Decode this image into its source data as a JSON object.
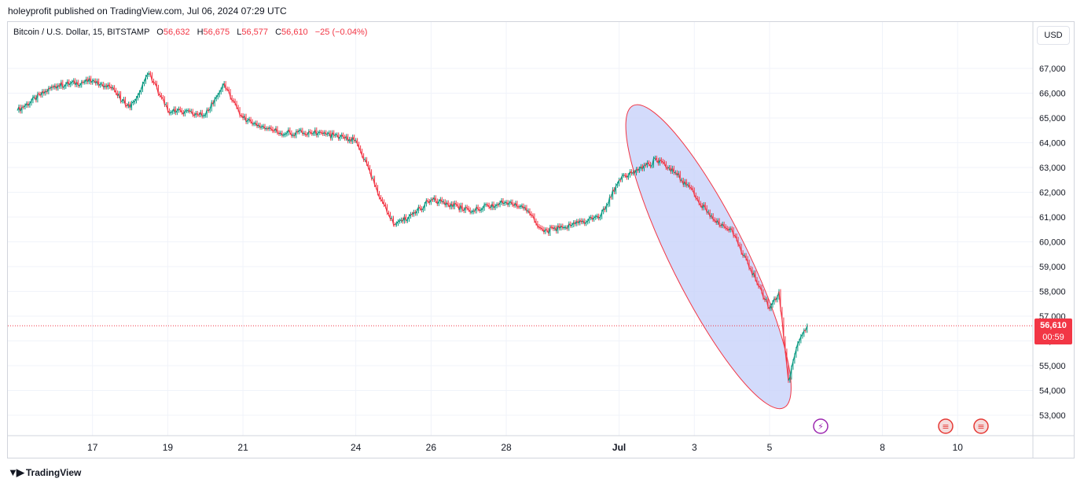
{
  "header": {
    "published": "holeyprofit published on TradingView.com, Jul 06, 2024 07:29 UTC"
  },
  "legend": {
    "symbol": "Bitcoin / U.S. Dollar, 15, BITSTAMP",
    "o_label": "O",
    "o_value": "56,632",
    "h_label": "H",
    "h_value": "56,675",
    "l_label": "L",
    "l_value": "56,577",
    "c_label": "C",
    "c_value": "56,610",
    "change": "−25 (−0.04%)"
  },
  "currency": "USD",
  "last_price": {
    "price": "56,610",
    "countdown": "00:59"
  },
  "footer": {
    "brand": "TradingView"
  },
  "colors": {
    "up": "#089981",
    "down": "#f23645",
    "ellipse_fill": "#c8d2fa",
    "ellipse_stroke": "#f23645"
  },
  "icons": [
    "flash-event-icon",
    "us-flag-event-icon",
    "us-flag-event-icon"
  ],
  "chart_data": {
    "type": "line",
    "title": "",
    "xlabel": "",
    "ylabel": "",
    "ylim": [
      52500,
      67700
    ],
    "grid": true,
    "x_ticks": [
      "17",
      "19",
      "21",
      "24",
      "26",
      "28",
      "Jul",
      "3",
      "5",
      "8",
      "10"
    ],
    "y_ticks": [
      "53,000",
      "54,000",
      "55,000",
      "56,000",
      "57,000",
      "58,000",
      "59,000",
      "60,000",
      "61,000",
      "62,000",
      "63,000",
      "64,000",
      "65,000",
      "66,000",
      "67,000"
    ],
    "series": [
      {
        "x": [
          "Jun 15",
          "Jun 16",
          "Jun 17",
          "Jun 17 12h",
          "Jun 18",
          "Jun 18 12h",
          "Jun 19",
          "Jun 20",
          "Jun 20 12h",
          "Jun 21",
          "Jun 22",
          "Jun 23",
          "Jun 24",
          "Jun 24 12h",
          "Jun 25",
          "Jun 25 12h",
          "Jun 26",
          "Jun 27",
          "Jun 28",
          "Jun 28 12h",
          "Jun 29",
          "Jun 30",
          "Jun 30 12h",
          "Jul 1",
          "Jul 2",
          "Jul 2 12h",
          "Jul 3",
          "Jul 3 12h",
          "Jul 4",
          "Jul 4 12h",
          "Jul 5",
          "Jul 5 6h",
          "Jul 5 12h",
          "Jul 5 18h",
          "Jul 6"
        ],
        "values": [
          65300,
          66300,
          66500,
          66200,
          65400,
          66800,
          65300,
          65100,
          66400,
          65000,
          64400,
          64400,
          64100,
          62300,
          60700,
          61100,
          61700,
          61300,
          61600,
          61400,
          60400,
          60800,
          61000,
          62500,
          63300,
          62800,
          61900,
          60900,
          60500,
          58900,
          57300,
          58000,
          54400,
          55900,
          56610
        ]
      }
    ],
    "annotations": [
      {
        "type": "ellipse",
        "x_from": "Jul 1 12h",
        "x_to": "Jul 5 6h",
        "y_top": 65100,
        "y_bottom": 53700
      }
    ]
  }
}
